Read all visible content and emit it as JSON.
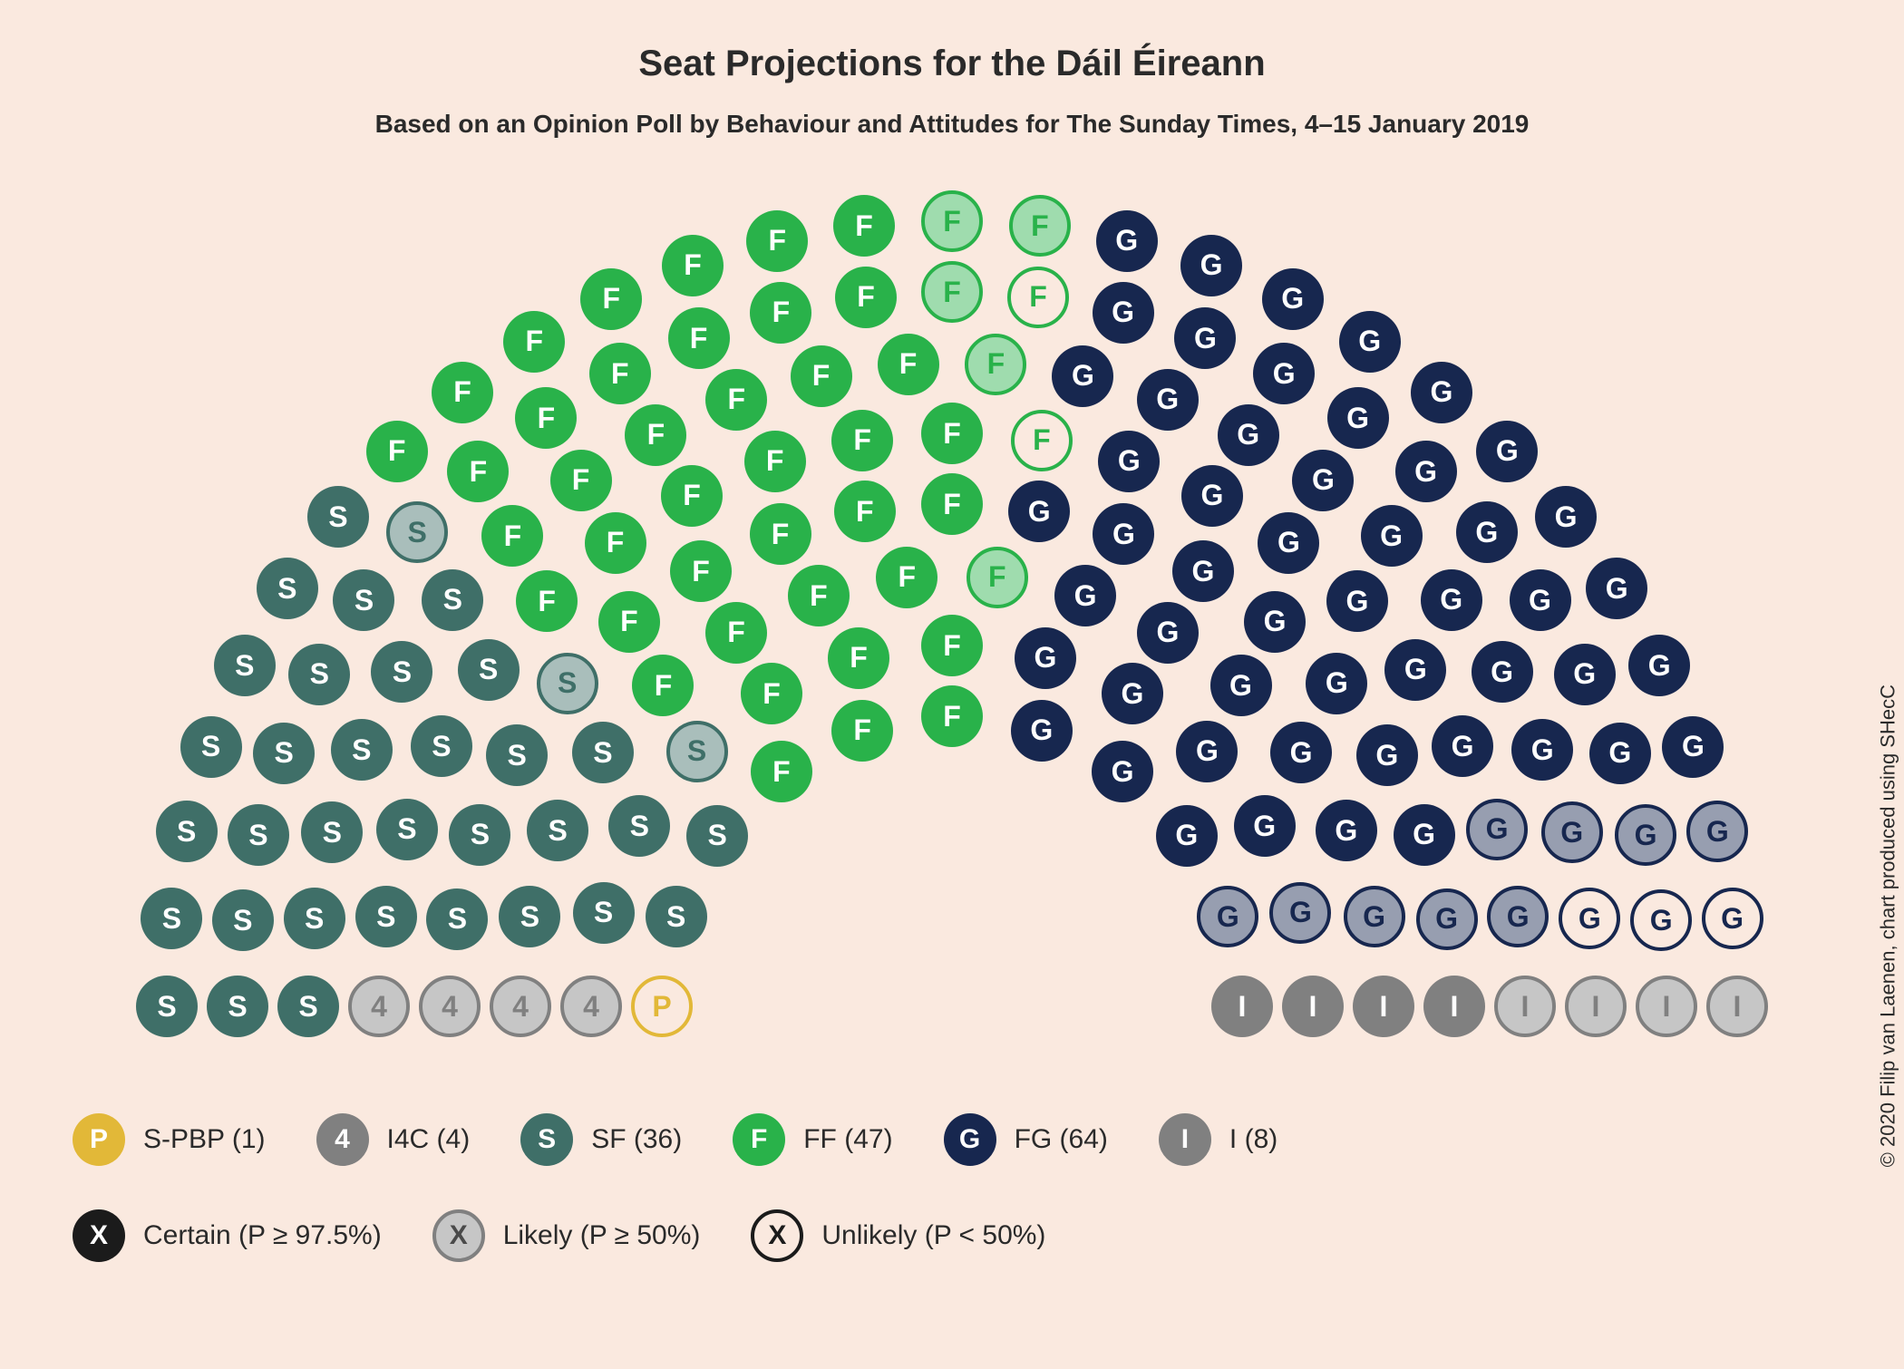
{
  "title": "Seat Projections for the Dáil Éireann",
  "subtitle": "Based on an Opinion Poll by Behaviour and Attitudes for The Sunday Times, 4–15 January 2019",
  "credit": "© 2020 Filip van Laenen, chart produced using SHecC",
  "background_color": "#fae9df",
  "text_color": "#2a2a2a",
  "seat_chart": {
    "type": "parliament-hemicycle",
    "total_seats": 160,
    "rows": 8,
    "inner_radius": 320,
    "row_gap": 78,
    "seat_diameter": 68,
    "seat_fontsize": 32,
    "letter_color_on_fill": "#ffffff",
    "parties": [
      {
        "id": "spbp",
        "letter": "P",
        "color": "#e2b838",
        "label": "S-PBP (1)",
        "breakdown": {
          "certain": 0,
          "likely": 0,
          "unlikely": 1
        }
      },
      {
        "id": "i4c",
        "letter": "4",
        "color": "#808080",
        "label": "I4C (4)",
        "breakdown": {
          "certain": 0,
          "likely": 4,
          "unlikely": 0
        }
      },
      {
        "id": "sf",
        "letter": "S",
        "color": "#3f6f68",
        "label": "SF (36)",
        "breakdown": {
          "certain": 33,
          "likely": 3,
          "unlikely": 0
        }
      },
      {
        "id": "ff",
        "letter": "F",
        "color": "#29b24a",
        "label": "FF (47)",
        "breakdown": {
          "certain": 40,
          "likely": 5,
          "unlikely": 2
        }
      },
      {
        "id": "fg",
        "letter": "G",
        "color": "#17274f",
        "label": "FG (64)",
        "breakdown": {
          "certain": 52,
          "likely": 9,
          "unlikely": 3
        }
      },
      {
        "id": "ind",
        "letter": "I",
        "color": "#808080",
        "label": "I (8)",
        "breakdown": {
          "certain": 4,
          "likely": 4,
          "unlikely": 0
        }
      }
    ]
  },
  "probability_legend": {
    "certain": {
      "label": "Certain (P ≥ 97.5%)",
      "swatch_fill": "#1b1b1b",
      "swatch_letter_color": "#ffffff"
    },
    "likely": {
      "label": "Likely (P ≥ 50%)"
    },
    "unlikely": {
      "label": "Unlikely (P < 50%)"
    }
  }
}
